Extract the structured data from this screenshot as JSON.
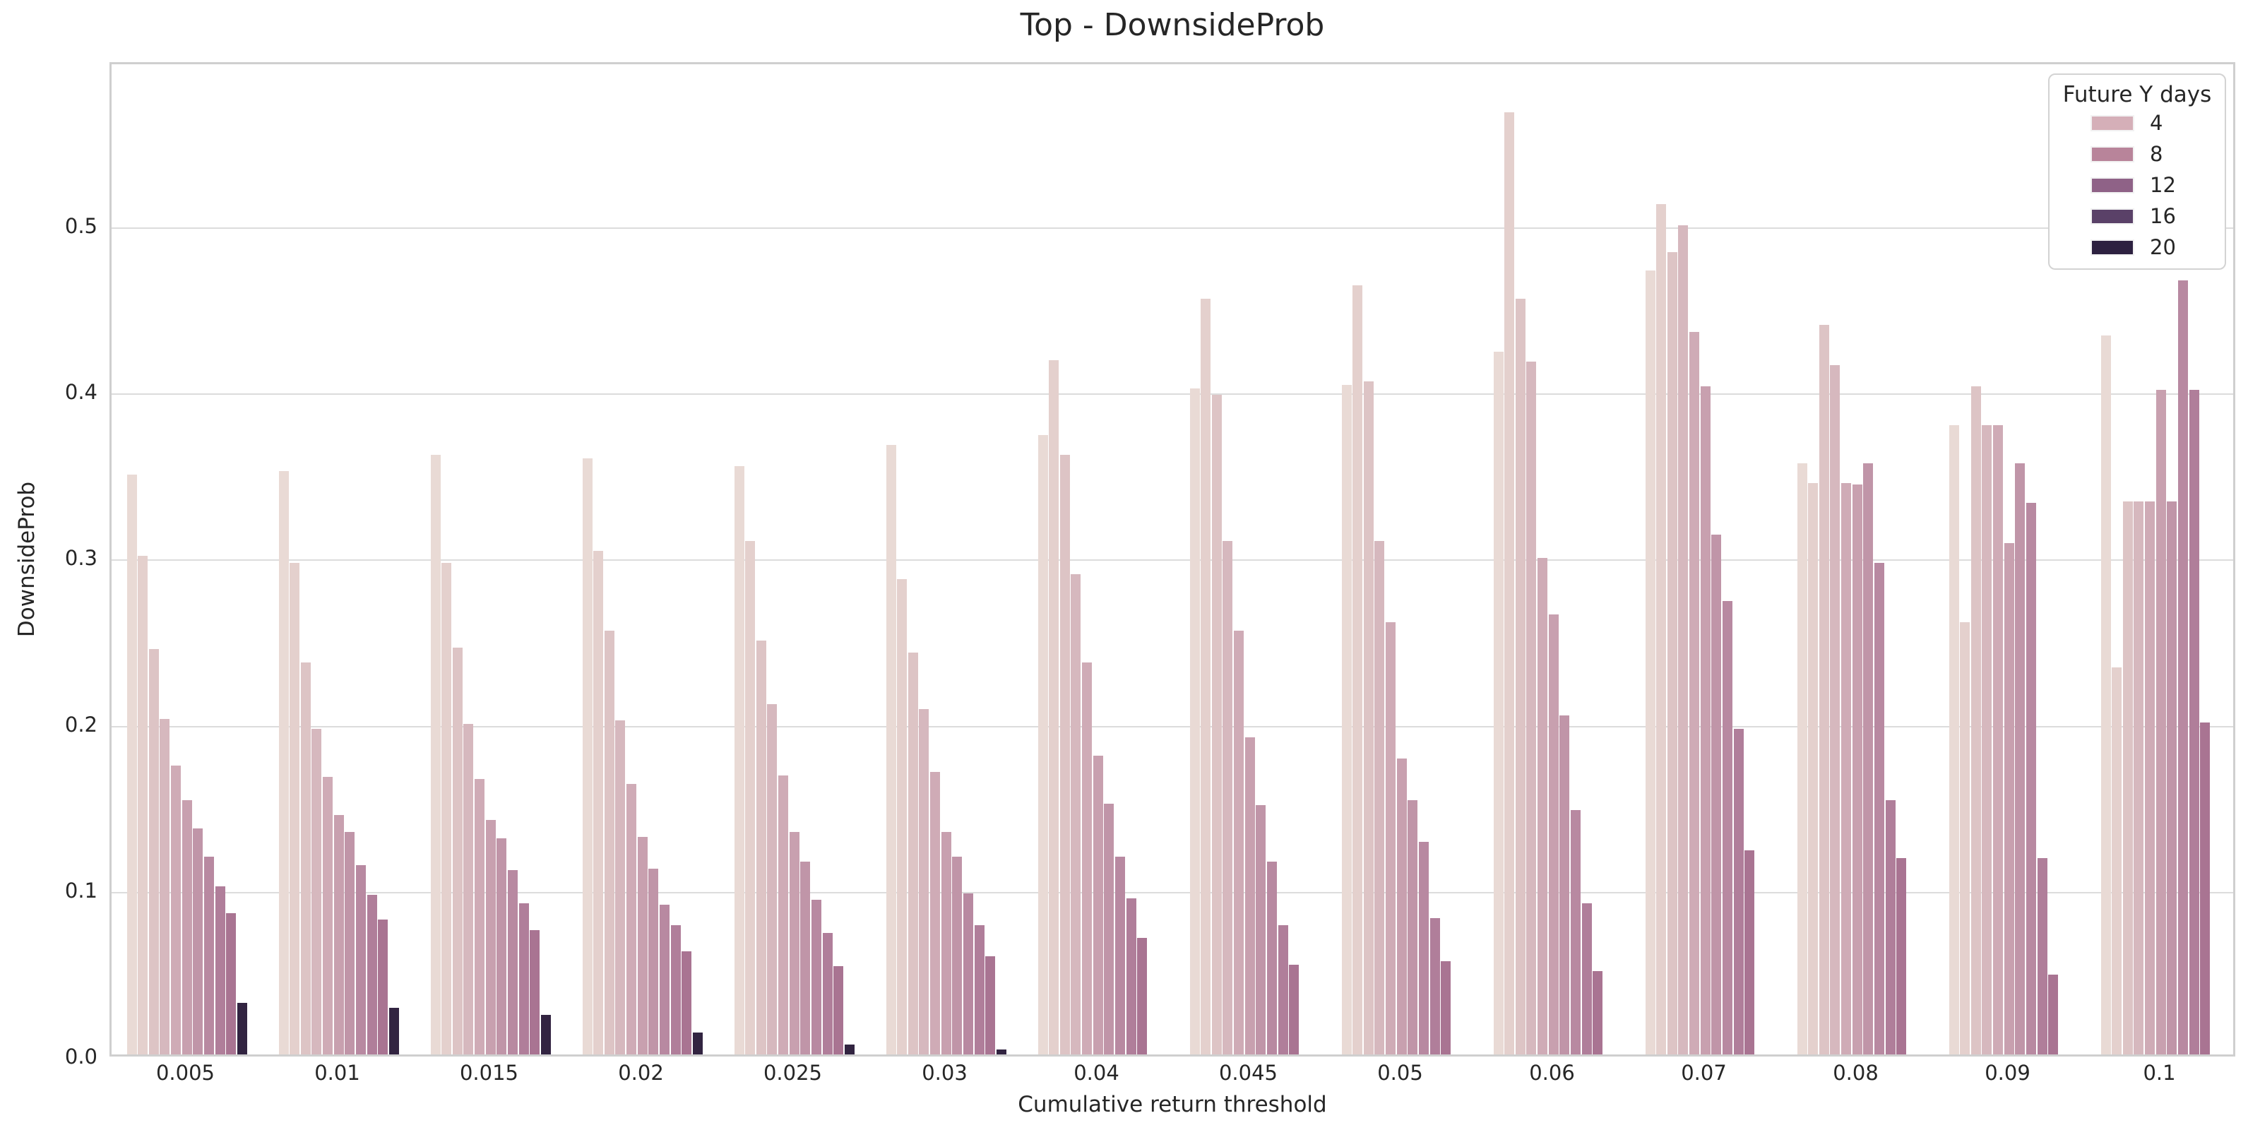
{
  "figure": {
    "background": "#ffffff",
    "text_color": "#262626",
    "grid_color": "#dcdcdc",
    "spine_color": "#cfcfcf"
  },
  "chart_data": {
    "type": "bar",
    "title": "Top - DownsideProb",
    "xlabel": "Cumulative return threshold",
    "ylabel": "DownsideProb",
    "ylim": [
      0,
      0.6
    ],
    "yticks": [
      0.0,
      0.1,
      0.2,
      0.3,
      0.4,
      0.5
    ],
    "grid": true,
    "legend": {
      "title": "Future Y days",
      "position": "upper right",
      "entries": [
        {
          "label": "4",
          "color": "#d5afb8"
        },
        {
          "label": "8",
          "color": "#b8849a"
        },
        {
          "label": "12",
          "color": "#8f6287"
        },
        {
          "label": "16",
          "color": "#5a4168"
        },
        {
          "label": "20",
          "color": "#2d2140"
        }
      ]
    },
    "bars_per_group": 11,
    "bar_colors": [
      "#e9dad5",
      "#e4d0cd",
      "#ddc4c5",
      "#d6b8be",
      "#cfabb6",
      "#c8a0af",
      "#c095a8",
      "#b889a1",
      "#b07e9a",
      "#a97492",
      "#322441"
    ],
    "categories": [
      "0.005",
      "0.01",
      "0.015",
      "0.02",
      "0.025",
      "0.03",
      "0.04",
      "0.045",
      "0.05",
      "0.06",
      "0.07",
      "0.08",
      "0.09",
      "0.1"
    ],
    "groups": [
      {
        "category": "0.005",
        "values": [
          0.349,
          0.3,
          0.244,
          0.202,
          0.174,
          0.153,
          0.136,
          0.119,
          0.101,
          0.085,
          0.031
        ]
      },
      {
        "category": "0.01",
        "values": [
          0.351,
          0.296,
          0.236,
          0.196,
          0.167,
          0.144,
          0.134,
          0.114,
          0.096,
          0.081,
          0.028
        ]
      },
      {
        "category": "0.015",
        "values": [
          0.361,
          0.296,
          0.245,
          0.199,
          0.166,
          0.141,
          0.13,
          0.111,
          0.091,
          0.075,
          0.024
        ]
      },
      {
        "category": "0.02",
        "values": [
          0.359,
          0.303,
          0.255,
          0.201,
          0.163,
          0.131,
          0.112,
          0.09,
          0.078,
          0.062,
          0.013
        ]
      },
      {
        "category": "0.025",
        "values": [
          0.354,
          0.309,
          0.249,
          0.211,
          0.168,
          0.134,
          0.116,
          0.093,
          0.073,
          0.053,
          0.006
        ]
      },
      {
        "category": "0.03",
        "values": [
          0.367,
          0.286,
          0.242,
          0.208,
          0.17,
          0.134,
          0.119,
          0.097,
          0.078,
          0.059,
          0.003
        ]
      },
      {
        "category": "0.04",
        "values": [
          0.373,
          0.418,
          0.361,
          0.289,
          0.236,
          0.18,
          0.151,
          0.119,
          0.094,
          0.07,
          0.0
        ]
      },
      {
        "category": "0.045",
        "values": [
          0.401,
          0.455,
          0.397,
          0.309,
          0.255,
          0.191,
          0.15,
          0.116,
          0.078,
          0.054,
          0.0
        ]
      },
      {
        "category": "0.05",
        "values": [
          0.403,
          0.463,
          0.405,
          0.309,
          0.26,
          0.178,
          0.153,
          0.128,
          0.082,
          0.056,
          0.0
        ]
      },
      {
        "category": "0.06",
        "values": [
          0.423,
          0.567,
          0.455,
          0.417,
          0.299,
          0.265,
          0.204,
          0.147,
          0.091,
          0.05,
          0.0
        ]
      },
      {
        "category": "0.07",
        "values": [
          0.472,
          0.512,
          0.483,
          0.499,
          0.435,
          0.402,
          0.313,
          0.273,
          0.196,
          0.123,
          0.0
        ]
      },
      {
        "category": "0.08",
        "values": [
          0.356,
          0.344,
          0.439,
          0.415,
          0.344,
          0.343,
          0.356,
          0.296,
          0.153,
          0.118,
          0.0
        ]
      },
      {
        "category": "0.09",
        "values": [
          0.379,
          0.26,
          0.402,
          0.379,
          0.379,
          0.308,
          0.356,
          0.332,
          0.118,
          0.048,
          0.0
        ]
      },
      {
        "category": "0.1",
        "values": [
          0.433,
          0.233,
          0.333,
          0.333,
          0.333,
          0.4,
          0.333,
          0.466,
          0.4,
          0.2,
          0.0
        ]
      }
    ]
  }
}
